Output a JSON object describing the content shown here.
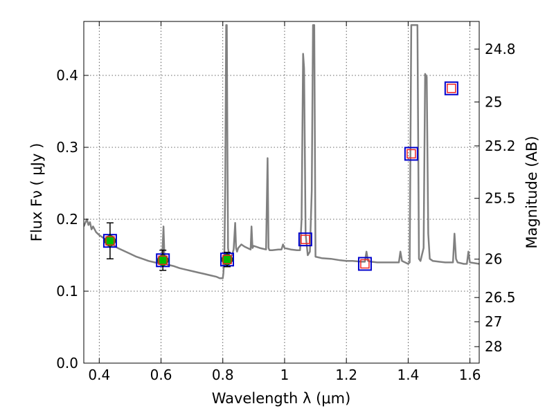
{
  "chart_data": {
    "type": "scatter",
    "title": "",
    "xlabel": "Wavelength  λ (μm)",
    "ylabel": "Flux  Fν  ( μJy )",
    "y2label": "Magnitude (AB)",
    "xlim": [
      0.35,
      1.63
    ],
    "ylim": [
      0.0,
      0.475
    ],
    "grid": true,
    "x_ticks": [
      "0.4",
      "0.6",
      "0.8",
      "1",
      "1.2",
      "1.4",
      "1.6"
    ],
    "x_tick_values": [
      0.4,
      0.6,
      0.8,
      1.0,
      1.2,
      1.4,
      1.6
    ],
    "y_ticks": [
      "0.0",
      "0.1",
      "0.2",
      "0.3",
      "0.4"
    ],
    "y_tick_values": [
      0.0,
      0.1,
      0.2,
      0.3,
      0.4
    ],
    "y2_ticks": [
      "24.8",
      "25",
      "25.2",
      "25.5",
      "26",
      "26.5",
      "27",
      "28"
    ],
    "y2_tick_values": [
      24.8,
      25.0,
      25.2,
      25.5,
      26.0,
      26.5,
      27.0,
      28.0
    ],
    "colors": {
      "spectrum": "#808080",
      "observed_fill": "#00bb00",
      "model_box": "#0000cc",
      "model_inner": "#ee2222",
      "errorbar": "#000000"
    },
    "spectrum": {
      "x": [
        0.35,
        0.355,
        0.36,
        0.365,
        0.37,
        0.375,
        0.38,
        0.39,
        0.4,
        0.41,
        0.42,
        0.43,
        0.44,
        0.45,
        0.46,
        0.48,
        0.5,
        0.52,
        0.54,
        0.56,
        0.58,
        0.6,
        0.605,
        0.608,
        0.611,
        0.614,
        0.62,
        0.64,
        0.66,
        0.68,
        0.7,
        0.72,
        0.74,
        0.76,
        0.78,
        0.79,
        0.8,
        0.802,
        0.805,
        0.808,
        0.811,
        0.813,
        0.815,
        0.817,
        0.82,
        0.825,
        0.83,
        0.835,
        0.84,
        0.843,
        0.846,
        0.85,
        0.86,
        0.87,
        0.88,
        0.89,
        0.893,
        0.896,
        0.9,
        0.92,
        0.94,
        0.945,
        0.948,
        0.951,
        0.96,
        0.98,
        0.99,
        0.995,
        1.0,
        1.02,
        1.04,
        1.05,
        1.055,
        1.06,
        1.063,
        1.068,
        1.075,
        1.082,
        1.088,
        1.092,
        1.096,
        1.1,
        1.12,
        1.15,
        1.18,
        1.2,
        1.22,
        1.25,
        1.26,
        1.265,
        1.27,
        1.28,
        1.3,
        1.33,
        1.36,
        1.37,
        1.375,
        1.38,
        1.39,
        1.4,
        1.405,
        1.41,
        1.415,
        1.425,
        1.43,
        1.435,
        1.44,
        1.45,
        1.455,
        1.46,
        1.465,
        1.47,
        1.48,
        1.5,
        1.52,
        1.54,
        1.545,
        1.55,
        1.555,
        1.56,
        1.58,
        1.59,
        1.595,
        1.6,
        1.63
      ],
      "y": [
        0.19,
        0.195,
        0.2,
        0.192,
        0.196,
        0.186,
        0.19,
        0.182,
        0.178,
        0.175,
        0.172,
        0.168,
        0.166,
        0.163,
        0.16,
        0.156,
        0.152,
        0.148,
        0.145,
        0.142,
        0.14,
        0.138,
        0.16,
        0.19,
        0.15,
        0.14,
        0.137,
        0.135,
        0.132,
        0.13,
        0.128,
        0.126,
        0.124,
        0.122,
        0.12,
        0.118,
        0.118,
        0.125,
        0.15,
        0.25,
        0.47,
        0.47,
        0.3,
        0.16,
        0.15,
        0.148,
        0.15,
        0.158,
        0.195,
        0.16,
        0.155,
        0.16,
        0.165,
        0.162,
        0.16,
        0.158,
        0.19,
        0.16,
        0.163,
        0.16,
        0.158,
        0.285,
        0.16,
        0.157,
        0.157,
        0.158,
        0.158,
        0.165,
        0.16,
        0.158,
        0.157,
        0.157,
        0.2,
        0.43,
        0.41,
        0.18,
        0.15,
        0.155,
        0.24,
        0.47,
        0.47,
        0.148,
        0.146,
        0.145,
        0.143,
        0.142,
        0.142,
        0.141,
        0.141,
        0.155,
        0.142,
        0.141,
        0.14,
        0.14,
        0.14,
        0.14,
        0.155,
        0.142,
        0.14,
        0.138,
        0.14,
        0.47,
        0.47,
        0.47,
        0.47,
        0.145,
        0.142,
        0.16,
        0.402,
        0.398,
        0.18,
        0.145,
        0.142,
        0.141,
        0.14,
        0.14,
        0.14,
        0.18,
        0.145,
        0.14,
        0.138,
        0.138,
        0.155,
        0.14,
        0.138
      ]
    },
    "series": [
      {
        "points": [
          {
            "x": 0.435,
            "y": 0.17,
            "err": 0.025
          },
          {
            "x": 0.606,
            "y": 0.143,
            "err": 0.014
          },
          {
            "x": 0.814,
            "y": 0.144,
            "err": 0.01
          }
        ]
      },
      {
        "points": [
          {
            "x": 0.435,
            "y": 0.17
          },
          {
            "x": 0.606,
            "y": 0.143
          },
          {
            "x": 0.814,
            "y": 0.144
          },
          {
            "x": 1.067,
            "y": 0.172
          },
          {
            "x": 1.26,
            "y": 0.138
          },
          {
            "x": 1.41,
            "y": 0.291
          },
          {
            "x": 1.54,
            "y": 0.382
          }
        ]
      }
    ]
  }
}
